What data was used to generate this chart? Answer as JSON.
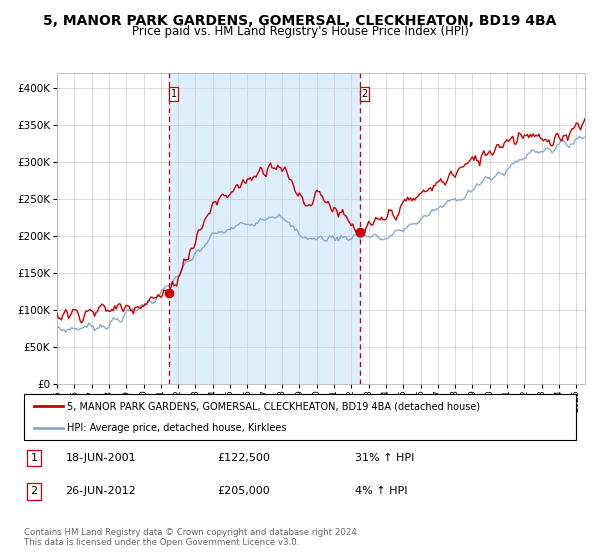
{
  "title": "5, MANOR PARK GARDENS, GOMERSAL, CLECKHEATON, BD19 4BA",
  "subtitle": "Price paid vs. HM Land Registry's House Price Index (HPI)",
  "title_fontsize": 10,
  "subtitle_fontsize": 8.5,
  "red_line_label": "5, MANOR PARK GARDENS, GOMERSAL, CLECKHEATON, BD19 4BA (detached house)",
  "blue_line_label": "HPI: Average price, detached house, Kirklees",
  "transaction1_date": "18-JUN-2001",
  "transaction1_price": 122500,
  "transaction1_hpi": "31% ↑ HPI",
  "transaction2_date": "26-JUN-2012",
  "transaction2_price": 205000,
  "transaction2_hpi": "4% ↑ HPI",
  "footer": "Contains HM Land Registry data © Crown copyright and database right 2024.\nThis data is licensed under the Open Government Licence v3.0.",
  "red_color": "#cc0000",
  "blue_color": "#88aacc",
  "shading_color": "#ddeeff",
  "dashed_line_color": "#cc0000",
  "marker_color": "#cc0000",
  "grid_color": "#cccccc",
  "background_color": "#ffffff",
  "ylim": [
    0,
    420000
  ],
  "yticks": [
    0,
    50000,
    100000,
    150000,
    200000,
    250000,
    300000,
    350000,
    400000
  ],
  "xstart_year": 1995,
  "xend_year": 2025,
  "transaction1_x": 2001.46,
  "transaction2_x": 2012.48
}
